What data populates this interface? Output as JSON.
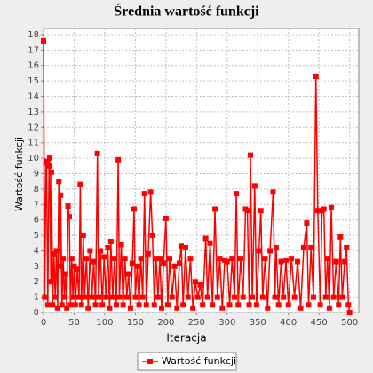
{
  "chart_data": {
    "type": "line",
    "title": "Średnia wartość funkcji",
    "x_label": "Iteracja",
    "y_label": "Wartość funkcji",
    "x": [
      0,
      2,
      4,
      5,
      7,
      9,
      10,
      12,
      13,
      15,
      17,
      19,
      21,
      23,
      25,
      27,
      28,
      30,
      32,
      34,
      36,
      38,
      40,
      42,
      44,
      46,
      48,
      50,
      52,
      55,
      58,
      60,
      62,
      65,
      67,
      70,
      73,
      76,
      79,
      82,
      85,
      88,
      90,
      93,
      96,
      99,
      102,
      105,
      108,
      110,
      113,
      116,
      119,
      122,
      124,
      127,
      130,
      133,
      136,
      139,
      142,
      145,
      148,
      150,
      153,
      156,
      159,
      162,
      165,
      168,
      171,
      175,
      178,
      181,
      184,
      187,
      190,
      193,
      196,
      200,
      203,
      206,
      210,
      214,
      218,
      222,
      225,
      228,
      232,
      236,
      240,
      244,
      248,
      252,
      256,
      260,
      265,
      268,
      272,
      276,
      280,
      284,
      288,
      292,
      296,
      300,
      304,
      308,
      312,
      315,
      318,
      322,
      326,
      330,
      333,
      336,
      338,
      341,
      345,
      348,
      352,
      355,
      358,
      362,
      366,
      370,
      375,
      378,
      380,
      384,
      388,
      392,
      396,
      400,
      405,
      410,
      415,
      420,
      425,
      430,
      433,
      437,
      441,
      445,
      448,
      452,
      455,
      458,
      461,
      464,
      467,
      470,
      474,
      478,
      482,
      485,
      488,
      492,
      495,
      498,
      500
    ],
    "series": [
      {
        "name": "Wartość funkcji",
        "color": "#ff0000",
        "values": [
          17.6,
          1,
          9.7,
          9.8,
          0.5,
          9.5,
          10,
          2,
          9.1,
          0.5,
          3.8,
          1,
          4,
          0.3,
          8.5,
          3,
          7.6,
          0.5,
          3.5,
          1,
          2.5,
          0.3,
          6.9,
          6.2,
          0.5,
          3.5,
          1,
          3,
          0.5,
          2.8,
          1,
          8.3,
          0.5,
          5,
          1,
          3.5,
          0.3,
          4,
          1,
          3.3,
          0.5,
          10.3,
          1,
          4,
          0.5,
          3.6,
          1,
          4.2,
          0.3,
          4.6,
          1,
          3.5,
          0.5,
          9.9,
          1,
          4.4,
          0.5,
          3.5,
          1,
          2.5,
          0.3,
          3.2,
          6.7,
          1,
          3,
          0.5,
          3.5,
          1,
          7.7,
          0.5,
          3.8,
          7.8,
          5,
          0.5,
          3.5,
          1,
          3.5,
          0.3,
          3.2,
          6.1,
          0.5,
          3.5,
          1,
          3,
          0.3,
          3.2,
          4.3,
          0.5,
          4.2,
          1,
          3.5,
          0.3,
          2,
          1,
          1.8,
          0.5,
          4.8,
          1,
          4.5,
          0.5,
          6.7,
          1,
          3.5,
          0.3,
          3.4,
          3.3,
          0.5,
          3.5,
          1,
          7.7,
          0.5,
          3.5,
          1,
          6.7,
          6.6,
          0.5,
          10.2,
          1,
          8.2,
          0.5,
          4,
          6.6,
          1,
          3.5,
          0.3,
          4,
          7.8,
          1,
          4.2,
          0.5,
          3.3,
          1,
          3.4,
          0.5,
          3.5,
          1,
          3.3,
          0.3,
          4.2,
          5.8,
          0.5,
          4.2,
          1,
          15.3,
          6.6,
          0.5,
          6.6,
          6.7,
          1,
          3.5,
          0.3,
          6.8,
          1,
          3.3,
          0.5,
          4.9,
          1,
          3.3,
          4.2,
          0.5,
          0
        ]
      }
    ],
    "xlim": [
      0,
      515
    ],
    "ylim": [
      0,
      18.4
    ],
    "xticks": [
      0,
      50,
      100,
      150,
      200,
      250,
      300,
      350,
      400,
      450,
      500
    ],
    "yticks": [
      0,
      1,
      2,
      3,
      4,
      5,
      6,
      7,
      8,
      9,
      10,
      11,
      12,
      13,
      14,
      15,
      16,
      17,
      18
    ],
    "grid": true,
    "legend": "bottom"
  }
}
